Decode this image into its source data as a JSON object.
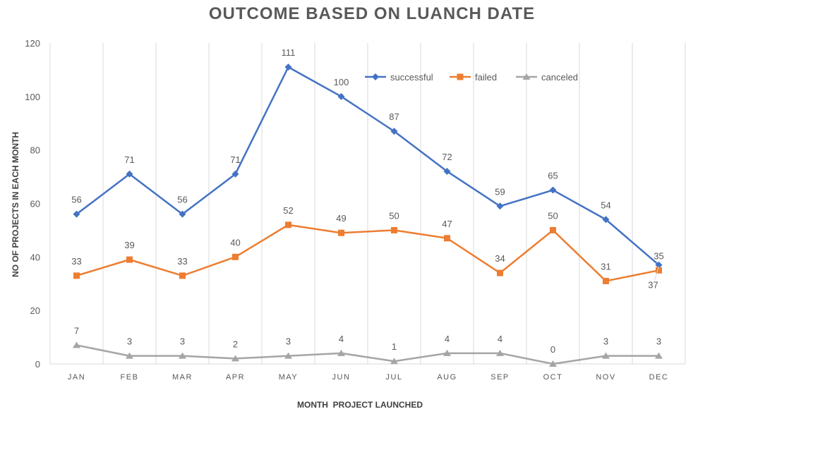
{
  "chart_data": {
    "type": "line",
    "title": "OUTCOME BASED ON LUANCH DATE",
    "xlabel": "MONTH  PROJECT LAUNCHED",
    "ylabel": "NO OF PROJECTS IN EACH MONTH",
    "categories": [
      "JAN",
      "FEB",
      "MAR",
      "APR",
      "MAY",
      "JUN",
      "JUL",
      "AUG",
      "SEP",
      "OCT",
      "NOV",
      "DEC"
    ],
    "ylim": [
      0,
      120
    ],
    "yticks": [
      0,
      20,
      40,
      60,
      80,
      100,
      120
    ],
    "grid": "vertical",
    "legend_position": "top-right",
    "series": [
      {
        "name": "successful",
        "color": "#4472C4",
        "marker": "diamond",
        "values": [
          56,
          71,
          56,
          71,
          111,
          100,
          87,
          72,
          59,
          65,
          54,
          37
        ]
      },
      {
        "name": "failed",
        "color": "#ED7D31",
        "marker": "square",
        "values": [
          33,
          39,
          33,
          40,
          52,
          49,
          50,
          47,
          34,
          50,
          31,
          35
        ]
      },
      {
        "name": "canceled",
        "color": "#A5A5A5",
        "marker": "triangle",
        "values": [
          7,
          3,
          3,
          2,
          3,
          4,
          1,
          4,
          4,
          0,
          3,
          3
        ]
      }
    ],
    "colors": {
      "axis_text": "#595959",
      "gridline": "#D9D9D9",
      "data_label": "#595959"
    }
  }
}
